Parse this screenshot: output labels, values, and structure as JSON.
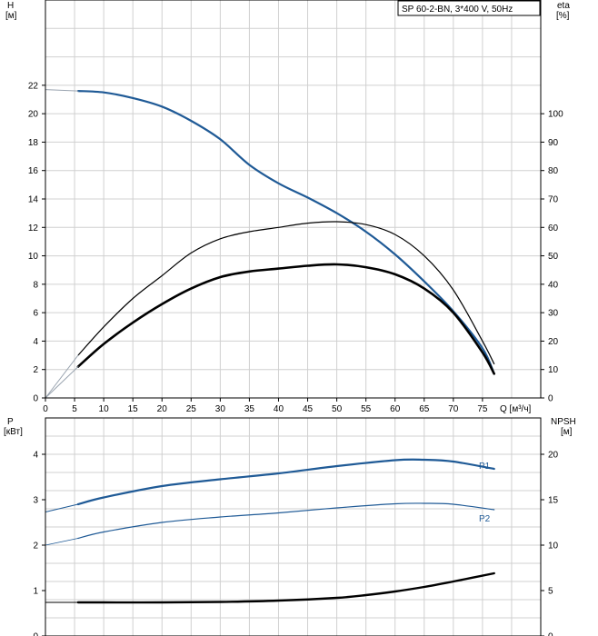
{
  "chart_data": [
    {
      "type": "line",
      "title": "SP 60-2-BN, 3*400 V, 50Hz",
      "xlabel": "Q [м³/ч]",
      "ylabel": [
        "H",
        "[м]"
      ],
      "y2label": [
        "eta",
        "[%]"
      ],
      "xlim": [
        0,
        85
      ],
      "ylim": [
        0,
        28
      ],
      "y2lim": [
        0,
        140
      ],
      "x_ticks": [
        0,
        5,
        10,
        15,
        20,
        25,
        30,
        35,
        40,
        45,
        50,
        55,
        60,
        65,
        70,
        75
      ],
      "y_ticks": [
        0,
        2,
        4,
        6,
        8,
        10,
        12,
        14,
        16,
        18,
        20,
        22
      ],
      "y2_ticks": [
        0,
        10,
        20,
        30,
        40,
        50,
        60,
        70,
        80,
        90,
        100
      ],
      "grid": true,
      "colors": {
        "head": "#1f5a96",
        "efficiency": "#000000",
        "ext": "#9aa4b0"
      },
      "series": [
        {
          "key": "head",
          "axis": "y",
          "x": [
            5.6,
            10,
            15,
            20,
            25,
            30,
            35,
            40,
            45,
            50,
            55,
            60,
            65,
            70,
            75,
            77
          ],
          "y": [
            21.6,
            21.5,
            21.1,
            20.5,
            19.5,
            18.2,
            16.4,
            15.1,
            14.1,
            13.0,
            11.7,
            10.1,
            8.2,
            6.1,
            3.5,
            1.7
          ]
        },
        {
          "key": "head_ext",
          "axis": "y",
          "x": [
            0,
            5.6
          ],
          "y": [
            21.7,
            21.6
          ]
        },
        {
          "key": "eta_thin",
          "axis": "y2",
          "x": [
            5.6,
            10,
            15,
            20,
            25,
            30,
            35,
            40,
            45,
            50,
            55,
            60,
            65,
            70,
            75,
            77
          ],
          "y": [
            15,
            25,
            35,
            43,
            51,
            56,
            58.5,
            60,
            61.5,
            62,
            61,
            57.5,
            50,
            38,
            20,
            12
          ]
        },
        {
          "key": "eta_thin_ext",
          "axis": "y2",
          "x": [
            0,
            5.6
          ],
          "y": [
            0,
            15
          ]
        },
        {
          "key": "eta_thick",
          "axis": "y2",
          "x": [
            5.6,
            10,
            15,
            20,
            25,
            30,
            35,
            40,
            45,
            50,
            55,
            60,
            65,
            70,
            75,
            77
          ],
          "y": [
            11,
            19,
            26.5,
            33,
            38.5,
            42.5,
            44.5,
            45.5,
            46.5,
            47,
            46,
            43.5,
            38.5,
            30,
            16,
            8.5
          ]
        },
        {
          "key": "eta_thick_ext",
          "axis": "y2",
          "x": [
            0,
            5.6
          ],
          "y": [
            0,
            11
          ]
        }
      ]
    },
    {
      "type": "line",
      "ylabel": [
        "P",
        "[кВт]"
      ],
      "y2label": [
        "NPSH",
        "[м]"
      ],
      "xlim": [
        0,
        85
      ],
      "ylim": [
        0,
        4.8
      ],
      "y2lim": [
        0,
        24
      ],
      "y_ticks": [
        0,
        1,
        2,
        3,
        4
      ],
      "y2_ticks": [
        0,
        5,
        10,
        15,
        20
      ],
      "grid": true,
      "series": [
        {
          "key": "P1",
          "name": "P1",
          "axis": "y",
          "x": [
            5.6,
            10,
            20,
            30,
            40,
            50,
            60,
            65,
            70,
            77
          ],
          "y": [
            2.9,
            3.05,
            3.3,
            3.45,
            3.58,
            3.74,
            3.87,
            3.88,
            3.84,
            3.68
          ]
        },
        {
          "key": "P1_ext",
          "axis": "y",
          "x": [
            0,
            5.6
          ],
          "y": [
            2.73,
            2.9
          ]
        },
        {
          "key": "P2",
          "name": "P2",
          "axis": "y",
          "x": [
            5.6,
            10,
            20,
            30,
            40,
            50,
            60,
            65,
            70,
            77
          ],
          "y": [
            2.15,
            2.29,
            2.5,
            2.62,
            2.71,
            2.82,
            2.91,
            2.92,
            2.9,
            2.78
          ]
        },
        {
          "key": "P2_ext",
          "axis": "y",
          "x": [
            0,
            5.6
          ],
          "y": [
            2.0,
            2.15
          ]
        },
        {
          "key": "NPSH",
          "axis": "y2",
          "x": [
            5.6,
            10,
            20,
            30,
            40,
            50,
            55,
            60,
            65,
            70,
            77
          ],
          "y": [
            3.7,
            3.7,
            3.7,
            3.75,
            3.9,
            4.2,
            4.5,
            4.9,
            5.4,
            6.0,
            6.9
          ]
        },
        {
          "key": "NPSH_ext",
          "axis": "y2",
          "x": [
            0,
            5.6
          ],
          "y": [
            3.7,
            3.7
          ]
        }
      ]
    }
  ]
}
